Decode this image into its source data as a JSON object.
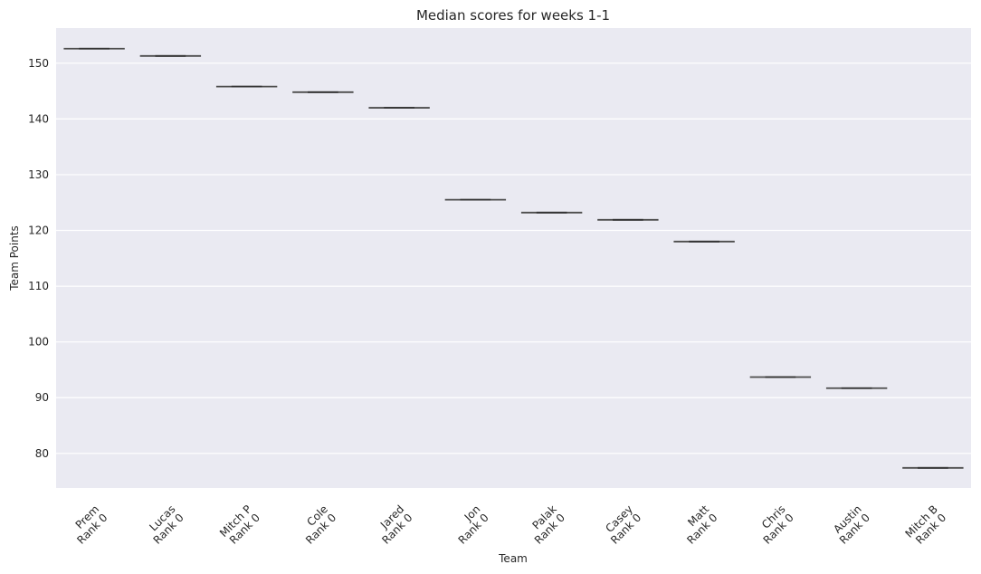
{
  "chart_data": {
    "type": "box",
    "title": "Median scores for weeks 1-1",
    "x_label": "Team",
    "y_label": "Team Points",
    "categories": [
      "Prem\nRank 0",
      "Lucas\nRank 0",
      "Mitch P\nRank 0",
      "Cole\nRank 0",
      "Jared\nRank 0",
      "Jon\nRank 0",
      "Palak\nRank 0",
      "Casey\nRank 0",
      "Matt\nRank 0",
      "Chris\nRank 0",
      "Austin\nRank 0",
      "Mitch B\nRank 0"
    ],
    "values": [
      152.6,
      151.3,
      145.8,
      144.8,
      142.0,
      125.5,
      123.2,
      121.9,
      118.0,
      93.7,
      91.7,
      77.4
    ],
    "color": "#4c4c4c",
    "ylim": [
      73.8,
      156.3
    ],
    "yticks": [
      80,
      90,
      100,
      110,
      120,
      130,
      140,
      150
    ],
    "grid": true
  }
}
